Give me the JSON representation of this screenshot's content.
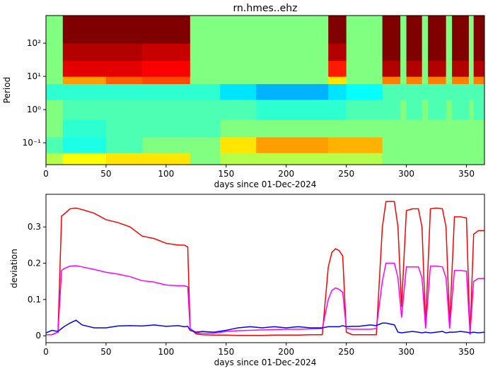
{
  "chart_data": [
    {
      "type": "heatmap",
      "title": "rn.hmes..ehz",
      "ylabel": "Period",
      "xlabel": "days since 01-Dec-2024",
      "colormap": "jet",
      "log_y": true,
      "xlim": [
        0,
        365
      ],
      "xticks": [
        0,
        50,
        100,
        150,
        200,
        250,
        300,
        350
      ],
      "ylim": [
        0.022,
        680
      ],
      "yticks": [
        {
          "value": 0.1,
          "label": "10⁻¹"
        },
        {
          "value": 1,
          "label": "10⁰"
        },
        {
          "value": 10,
          "label": "10¹"
        },
        {
          "value": 100,
          "label": "10²"
        }
      ],
      "x_edges": [
        0,
        14,
        50,
        80,
        120,
        145,
        175,
        235,
        250,
        280,
        295,
        300,
        313,
        318,
        333,
        338,
        352,
        356,
        365
      ],
      "y_edges": [
        0.022,
        0.05,
        0.15,
        0.5,
        2,
        6,
        10,
        30,
        100,
        680
      ],
      "z": [
        [
          0.55,
          0.62,
          0.65,
          0.65,
          0.5,
          0.55,
          0.55,
          0.55,
          0.55,
          0.5,
          0.5,
          0.5,
          0.5,
          0.5,
          0.5,
          0.5,
          0.5,
          0.5
        ],
        [
          0.45,
          0.4,
          0.45,
          0.5,
          0.5,
          0.65,
          0.72,
          0.7,
          0.7,
          0.5,
          0.5,
          0.5,
          0.5,
          0.5,
          0.5,
          0.5,
          0.5,
          0.5
        ],
        [
          0.5,
          0.42,
          0.45,
          0.45,
          0.45,
          0.5,
          0.5,
          0.5,
          0.5,
          0.5,
          0.5,
          0.5,
          0.5,
          0.5,
          0.5,
          0.5,
          0.5,
          0.5
        ],
        [
          0.5,
          0.45,
          0.45,
          0.45,
          0.45,
          0.45,
          0.42,
          0.42,
          0.45,
          0.45,
          0.5,
          0.45,
          0.5,
          0.45,
          0.5,
          0.45,
          0.5,
          0.45
        ],
        [
          0.42,
          0.42,
          0.42,
          0.42,
          0.42,
          0.35,
          0.3,
          0.35,
          0.38,
          0.45,
          0.45,
          0.45,
          0.45,
          0.45,
          0.45,
          0.45,
          0.45,
          0.45
        ],
        [
          0.5,
          0.72,
          0.78,
          0.8,
          0.5,
          0.5,
          0.5,
          0.65,
          0.5,
          0.75,
          0.5,
          0.75,
          0.5,
          0.75,
          0.5,
          0.75,
          0.5,
          0.75
        ],
        [
          0.5,
          0.9,
          0.9,
          0.88,
          0.5,
          0.5,
          0.5,
          0.85,
          0.5,
          0.95,
          0.5,
          0.95,
          0.5,
          0.95,
          0.5,
          0.95,
          0.5,
          0.95
        ],
        [
          0.5,
          0.95,
          0.95,
          0.93,
          0.5,
          0.5,
          0.5,
          0.95,
          0.5,
          1,
          0.5,
          1,
          0.5,
          1,
          0.5,
          1,
          0.5,
          1
        ],
        [
          0.5,
          1,
          1,
          1,
          0.5,
          0.5,
          0.5,
          1,
          0.5,
          1,
          0.5,
          1,
          0.5,
          1,
          0.5,
          1,
          0.5,
          1
        ]
      ]
    },
    {
      "type": "line",
      "ylabel": "deviation",
      "xlabel": "days since 01-Dec-2024",
      "xlim": [
        0,
        365
      ],
      "xticks": [
        0,
        50,
        100,
        150,
        200,
        250,
        300,
        350
      ],
      "ylim": [
        -0.019,
        0.39
      ],
      "yticks": [
        0.0,
        0.1,
        0.2,
        0.3
      ],
      "x": [
        0,
        5,
        10,
        13,
        15,
        20,
        25,
        30,
        40,
        50,
        60,
        70,
        80,
        90,
        100,
        110,
        115,
        118,
        120,
        125,
        130,
        140,
        150,
        160,
        170,
        180,
        190,
        200,
        210,
        220,
        230,
        235,
        238,
        241,
        244,
        247,
        250,
        255,
        260,
        270,
        275,
        280,
        283,
        290,
        293,
        296,
        300,
        305,
        310,
        313,
        316,
        320,
        325,
        330,
        333,
        336,
        340,
        345,
        350,
        353,
        356,
        360,
        365
      ],
      "series": [
        {
          "color": "#ff0000",
          "values": [
            0.003,
            0.003,
            0.01,
            0.33,
            0.335,
            0.35,
            0.352,
            0.348,
            0.338,
            0.32,
            0.312,
            0.3,
            0.275,
            0.268,
            0.255,
            0.25,
            0.25,
            0.245,
            0.02,
            0.005,
            0.003,
            0.002,
            0.002,
            0.001,
            0.001,
            0.001,
            0.002,
            0.002,
            0.002,
            0.003,
            0.003,
            0.19,
            0.23,
            0.24,
            0.235,
            0.22,
            0.01,
            0.003,
            0.003,
            0.003,
            0.003,
            0.3,
            0.37,
            0.37,
            0.3,
            0.08,
            0.345,
            0.35,
            0.35,
            0.3,
            0.03,
            0.35,
            0.352,
            0.35,
            0.3,
            0.03,
            0.328,
            0.328,
            0.325,
            0.003,
            0.28,
            0.29,
            0.29
          ]
        },
        {
          "color": "#ff00ff",
          "values": [
            0.003,
            0.003,
            0.01,
            0.18,
            0.185,
            0.192,
            0.193,
            0.19,
            0.183,
            0.175,
            0.17,
            0.163,
            0.152,
            0.148,
            0.14,
            0.138,
            0.138,
            0.135,
            0.02,
            0.008,
            0.007,
            0.007,
            0.012,
            0.014,
            0.015,
            0.016,
            0.017,
            0.018,
            0.018,
            0.019,
            0.02,
            0.1,
            0.125,
            0.132,
            0.128,
            0.12,
            0.02,
            0.018,
            0.018,
            0.018,
            0.02,
            0.15,
            0.2,
            0.2,
            0.16,
            0.05,
            0.19,
            0.19,
            0.19,
            0.16,
            0.02,
            0.192,
            0.192,
            0.19,
            0.16,
            0.02,
            0.18,
            0.18,
            0.178,
            0.005,
            0.15,
            0.158,
            0.158
          ]
        },
        {
          "color": "#0000ff",
          "values": [
            0.008,
            0.015,
            0.012,
            0.02,
            0.025,
            0.035,
            0.043,
            0.03,
            0.022,
            0.022,
            0.027,
            0.028,
            0.027,
            0.03,
            0.026,
            0.028,
            0.025,
            0.026,
            0.015,
            0.01,
            0.012,
            0.01,
            0.015,
            0.022,
            0.025,
            0.022,
            0.025,
            0.022,
            0.025,
            0.022,
            0.022,
            0.025,
            0.025,
            0.025,
            0.025,
            0.028,
            0.025,
            0.026,
            0.026,
            0.03,
            0.028,
            0.035,
            0.035,
            0.03,
            0.01,
            0.008,
            0.01,
            0.012,
            0.01,
            0.008,
            0.01,
            0.008,
            0.01,
            0.012,
            0.008,
            0.01,
            0.01,
            0.012,
            0.01,
            0.008,
            0.01,
            0.008,
            0.01
          ]
        }
      ]
    }
  ]
}
